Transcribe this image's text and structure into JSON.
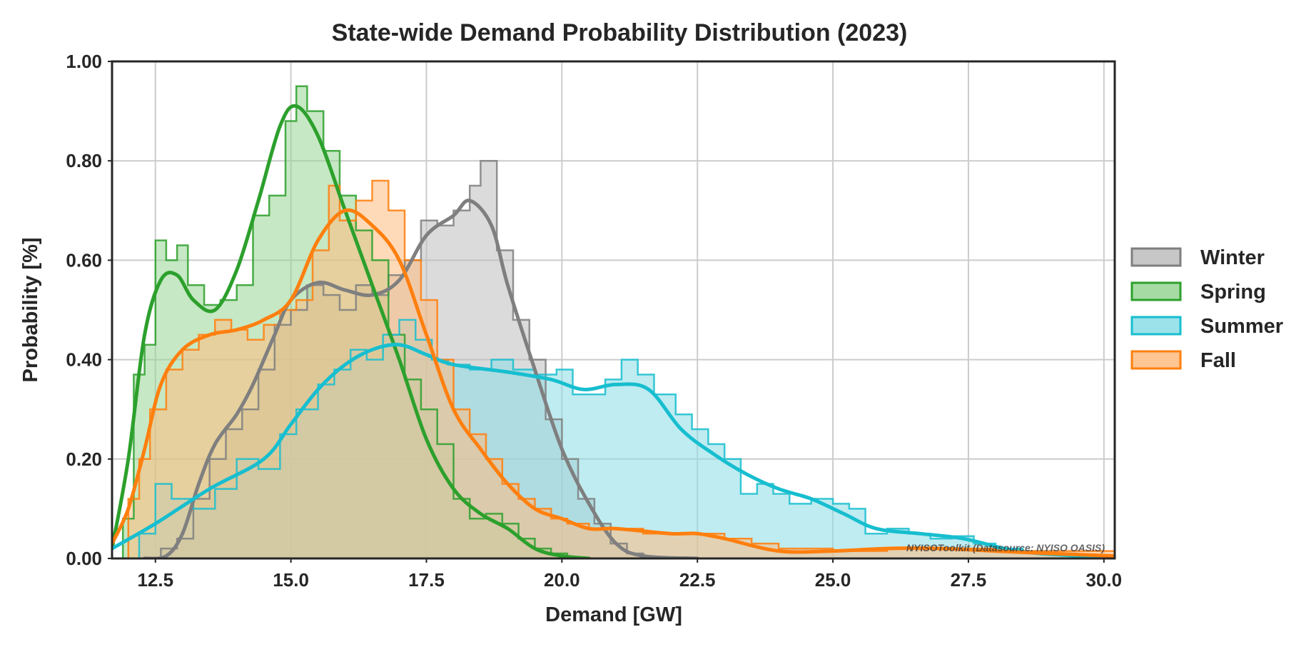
{
  "chart_data": {
    "type": "area",
    "title": "State-wide Demand Probability Distribution (2023)",
    "xlabel": "Demand [GW]",
    "ylabel": "Probability [%]",
    "xlim": [
      11.7,
      30.2
    ],
    "ylim": [
      0,
      1.0
    ],
    "x_ticks": [
      12.5,
      15.0,
      17.5,
      20.0,
      22.5,
      25.0,
      27.5,
      30.0
    ],
    "x_tick_labels": [
      "12.5",
      "15.0",
      "17.5",
      "20.0",
      "22.5",
      "25.0",
      "27.5",
      "30.0"
    ],
    "y_ticks": [
      0,
      0.2,
      0.4,
      0.6,
      0.8,
      1.0
    ],
    "y_tick_labels": [
      "0.00",
      "0.20",
      "0.40",
      "0.60",
      "0.80",
      "1.00"
    ],
    "grid": true,
    "legend_position": "right",
    "annotation": "NYISOToolkit (Datasource: NYISO OASIS)",
    "histogram_style": "step, filled, semi-transparent",
    "series": [
      {
        "name": "Winter",
        "color": "#7f7f7f",
        "fill": "#bdbdbd",
        "kde": [
          [
            12.3,
            0.0
          ],
          [
            12.7,
            0.005
          ],
          [
            13.0,
            0.05
          ],
          [
            13.3,
            0.15
          ],
          [
            13.6,
            0.23
          ],
          [
            14.0,
            0.29
          ],
          [
            14.3,
            0.35
          ],
          [
            14.7,
            0.45
          ],
          [
            15.0,
            0.52
          ],
          [
            15.5,
            0.555
          ],
          [
            16.0,
            0.54
          ],
          [
            16.5,
            0.53
          ],
          [
            17.0,
            0.56
          ],
          [
            17.5,
            0.65
          ],
          [
            18.0,
            0.69
          ],
          [
            18.3,
            0.72
          ],
          [
            18.7,
            0.67
          ],
          [
            19.0,
            0.55
          ],
          [
            19.5,
            0.38
          ],
          [
            20.0,
            0.22
          ],
          [
            20.5,
            0.11
          ],
          [
            21.0,
            0.03
          ],
          [
            21.5,
            0.005
          ],
          [
            22.5,
            0.0
          ]
        ],
        "hist": [
          [
            12.3,
            0.0
          ],
          [
            12.6,
            0.02
          ],
          [
            12.9,
            0.04
          ],
          [
            13.2,
            0.12
          ],
          [
            13.5,
            0.2
          ],
          [
            13.8,
            0.26
          ],
          [
            14.1,
            0.3
          ],
          [
            14.4,
            0.38
          ],
          [
            14.7,
            0.47
          ],
          [
            15.0,
            0.5
          ],
          [
            15.3,
            0.55
          ],
          [
            15.6,
            0.53
          ],
          [
            15.9,
            0.5
          ],
          [
            16.2,
            0.55
          ],
          [
            16.5,
            0.53
          ],
          [
            16.8,
            0.57
          ],
          [
            17.1,
            0.6
          ],
          [
            17.4,
            0.68
          ],
          [
            17.7,
            0.67
          ],
          [
            18.0,
            0.7
          ],
          [
            18.3,
            0.75
          ],
          [
            18.5,
            0.8
          ],
          [
            18.8,
            0.62
          ],
          [
            19.1,
            0.48
          ],
          [
            19.4,
            0.4
          ],
          [
            19.7,
            0.28
          ],
          [
            20.0,
            0.2
          ],
          [
            20.3,
            0.12
          ],
          [
            20.6,
            0.07
          ],
          [
            20.9,
            0.03
          ],
          [
            21.2,
            0.01
          ],
          [
            21.5,
            0.0
          ]
        ]
      },
      {
        "name": "Spring",
        "color": "#2ca02c",
        "fill": "#98d594",
        "kde": [
          [
            11.7,
            0.02
          ],
          [
            12.0,
            0.2
          ],
          [
            12.3,
            0.45
          ],
          [
            12.6,
            0.56
          ],
          [
            12.9,
            0.57
          ],
          [
            13.2,
            0.52
          ],
          [
            13.6,
            0.5
          ],
          [
            14.0,
            0.58
          ],
          [
            14.4,
            0.72
          ],
          [
            14.8,
            0.87
          ],
          [
            15.1,
            0.91
          ],
          [
            15.5,
            0.85
          ],
          [
            16.0,
            0.7
          ],
          [
            16.5,
            0.55
          ],
          [
            17.0,
            0.4
          ],
          [
            17.5,
            0.24
          ],
          [
            18.0,
            0.14
          ],
          [
            18.5,
            0.09
          ],
          [
            19.0,
            0.06
          ],
          [
            19.5,
            0.02
          ],
          [
            20.0,
            0.005
          ],
          [
            20.5,
            0.0
          ]
        ],
        "hist": [
          [
            11.7,
            0.0
          ],
          [
            11.9,
            0.08
          ],
          [
            12.1,
            0.37
          ],
          [
            12.3,
            0.43
          ],
          [
            12.5,
            0.64
          ],
          [
            12.7,
            0.6
          ],
          [
            12.9,
            0.63
          ],
          [
            13.1,
            0.55
          ],
          [
            13.4,
            0.51
          ],
          [
            13.7,
            0.52
          ],
          [
            14.0,
            0.55
          ],
          [
            14.3,
            0.69
          ],
          [
            14.6,
            0.73
          ],
          [
            14.9,
            0.88
          ],
          [
            15.1,
            0.95
          ],
          [
            15.3,
            0.9
          ],
          [
            15.6,
            0.82
          ],
          [
            15.9,
            0.73
          ],
          [
            16.2,
            0.66
          ],
          [
            16.5,
            0.6
          ],
          [
            16.8,
            0.45
          ],
          [
            17.1,
            0.36
          ],
          [
            17.4,
            0.3
          ],
          [
            17.7,
            0.23
          ],
          [
            18.0,
            0.12
          ],
          [
            18.3,
            0.08
          ],
          [
            18.6,
            0.09
          ],
          [
            18.9,
            0.07
          ],
          [
            19.2,
            0.04
          ],
          [
            19.5,
            0.02
          ],
          [
            19.8,
            0.01
          ],
          [
            20.1,
            0.0
          ]
        ]
      },
      {
        "name": "Summer",
        "color": "#17becf",
        "fill": "#8adde6",
        "kde": [
          [
            11.7,
            0.02
          ],
          [
            12.5,
            0.07
          ],
          [
            13.5,
            0.14
          ],
          [
            14.5,
            0.2
          ],
          [
            15.0,
            0.27
          ],
          [
            15.5,
            0.34
          ],
          [
            16.0,
            0.39
          ],
          [
            16.5,
            0.42
          ],
          [
            17.0,
            0.43
          ],
          [
            17.5,
            0.41
          ],
          [
            18.0,
            0.39
          ],
          [
            19.0,
            0.375
          ],
          [
            19.8,
            0.36
          ],
          [
            20.4,
            0.34
          ],
          [
            21.0,
            0.35
          ],
          [
            21.6,
            0.34
          ],
          [
            22.2,
            0.26
          ],
          [
            22.8,
            0.21
          ],
          [
            23.4,
            0.17
          ],
          [
            24.0,
            0.14
          ],
          [
            24.6,
            0.12
          ],
          [
            25.2,
            0.09
          ],
          [
            25.8,
            0.06
          ],
          [
            26.6,
            0.05
          ],
          [
            27.4,
            0.04
          ],
          [
            28.4,
            0.015
          ],
          [
            29.5,
            0.005
          ],
          [
            30.2,
            0.0
          ]
        ],
        "hist": [
          [
            11.7,
            0.0
          ],
          [
            12.2,
            0.05
          ],
          [
            12.5,
            0.15
          ],
          [
            12.8,
            0.12
          ],
          [
            13.2,
            0.1
          ],
          [
            13.6,
            0.14
          ],
          [
            14.0,
            0.2
          ],
          [
            14.4,
            0.18
          ],
          [
            14.8,
            0.25
          ],
          [
            15.1,
            0.3
          ],
          [
            15.5,
            0.35
          ],
          [
            15.8,
            0.38
          ],
          [
            16.1,
            0.42
          ],
          [
            16.4,
            0.4
          ],
          [
            16.7,
            0.45
          ],
          [
            17.0,
            0.48
          ],
          [
            17.3,
            0.44
          ],
          [
            17.6,
            0.4
          ],
          [
            17.9,
            0.39
          ],
          [
            18.3,
            0.38
          ],
          [
            18.7,
            0.4
          ],
          [
            19.1,
            0.38
          ],
          [
            19.5,
            0.37
          ],
          [
            19.9,
            0.38
          ],
          [
            20.2,
            0.33
          ],
          [
            20.5,
            0.33
          ],
          [
            20.8,
            0.36
          ],
          [
            21.1,
            0.4
          ],
          [
            21.4,
            0.37
          ],
          [
            21.7,
            0.33
          ],
          [
            22.1,
            0.29
          ],
          [
            22.4,
            0.26
          ],
          [
            22.7,
            0.23
          ],
          [
            23.0,
            0.2
          ],
          [
            23.3,
            0.13
          ],
          [
            23.6,
            0.15
          ],
          [
            23.9,
            0.13
          ],
          [
            24.2,
            0.11
          ],
          [
            24.6,
            0.12
          ],
          [
            25.0,
            0.11
          ],
          [
            25.3,
            0.1
          ],
          [
            25.6,
            0.05
          ],
          [
            26.0,
            0.06
          ],
          [
            26.4,
            0.05
          ],
          [
            26.8,
            0.04
          ],
          [
            27.2,
            0.045
          ],
          [
            27.6,
            0.03
          ],
          [
            28.0,
            0.02
          ],
          [
            28.5,
            0.015
          ],
          [
            29.0,
            0.01
          ],
          [
            29.5,
            0.005
          ],
          [
            30.2,
            0.0
          ]
        ]
      },
      {
        "name": "Fall",
        "color": "#ff7f0e",
        "fill": "#ffbb7f",
        "kde": [
          [
            11.7,
            0.03
          ],
          [
            12.0,
            0.1
          ],
          [
            12.3,
            0.22
          ],
          [
            12.6,
            0.35
          ],
          [
            13.0,
            0.42
          ],
          [
            13.5,
            0.45
          ],
          [
            14.0,
            0.46
          ],
          [
            14.5,
            0.48
          ],
          [
            15.0,
            0.52
          ],
          [
            15.5,
            0.64
          ],
          [
            16.0,
            0.7
          ],
          [
            16.5,
            0.67
          ],
          [
            17.0,
            0.6
          ],
          [
            17.5,
            0.45
          ],
          [
            18.0,
            0.3
          ],
          [
            18.5,
            0.22
          ],
          [
            19.0,
            0.15
          ],
          [
            19.5,
            0.1
          ],
          [
            20.0,
            0.08
          ],
          [
            20.5,
            0.06
          ],
          [
            21.0,
            0.06
          ],
          [
            22.0,
            0.05
          ],
          [
            22.5,
            0.05
          ],
          [
            23.0,
            0.04
          ],
          [
            24.0,
            0.015
          ],
          [
            25.0,
            0.015
          ],
          [
            26.0,
            0.02
          ],
          [
            27.0,
            0.02
          ],
          [
            28.0,
            0.015
          ],
          [
            29.0,
            0.01
          ],
          [
            30.2,
            0.005
          ]
        ],
        "hist": [
          [
            11.7,
            0.0
          ],
          [
            12.0,
            0.12
          ],
          [
            12.2,
            0.2
          ],
          [
            12.4,
            0.3
          ],
          [
            12.7,
            0.38
          ],
          [
            13.0,
            0.42
          ],
          [
            13.3,
            0.45
          ],
          [
            13.6,
            0.48
          ],
          [
            13.9,
            0.46
          ],
          [
            14.2,
            0.44
          ],
          [
            14.5,
            0.47
          ],
          [
            14.8,
            0.5
          ],
          [
            15.1,
            0.52
          ],
          [
            15.4,
            0.62
          ],
          [
            15.7,
            0.75
          ],
          [
            15.9,
            0.68
          ],
          [
            16.2,
            0.72
          ],
          [
            16.5,
            0.76
          ],
          [
            16.8,
            0.7
          ],
          [
            17.1,
            0.6
          ],
          [
            17.4,
            0.52
          ],
          [
            17.7,
            0.4
          ],
          [
            18.0,
            0.3
          ],
          [
            18.3,
            0.25
          ],
          [
            18.6,
            0.2
          ],
          [
            18.9,
            0.15
          ],
          [
            19.2,
            0.12
          ],
          [
            19.5,
            0.1
          ],
          [
            19.8,
            0.08
          ],
          [
            20.1,
            0.07
          ],
          [
            20.5,
            0.06
          ],
          [
            21.0,
            0.06
          ],
          [
            21.5,
            0.05
          ],
          [
            22.0,
            0.05
          ],
          [
            22.5,
            0.05
          ],
          [
            23.0,
            0.04
          ],
          [
            23.5,
            0.03
          ],
          [
            24.0,
            0.02
          ],
          [
            25.0,
            0.015
          ],
          [
            26.0,
            0.02
          ],
          [
            27.0,
            0.02
          ],
          [
            28.0,
            0.015
          ],
          [
            30.2,
            0.0
          ]
        ]
      }
    ]
  }
}
